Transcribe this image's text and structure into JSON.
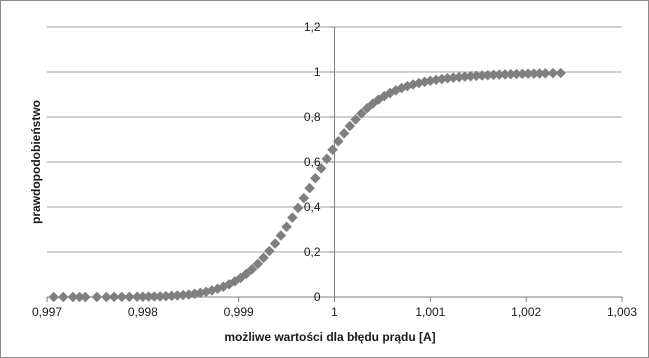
{
  "chart_data": {
    "type": "scatter",
    "xlabel": "możliwe wartości  dla błędu prądu [A]",
    "ylabel": "prawdopodobieństwo",
    "xlim": [
      0.997,
      1.003
    ],
    "ylim": [
      0,
      1.2
    ],
    "x_ticks": [
      "0,997",
      "0,998",
      "0,999",
      "1",
      "1,001",
      "1,002",
      "1,003"
    ],
    "y_ticks": [
      "0",
      "0,2",
      "0,4",
      "0,6",
      "0,8",
      "1",
      "1,2"
    ],
    "grid": true,
    "legend": "none",
    "marker": "diamond",
    "color": "#7f7f7f",
    "series": [
      {
        "x": [
          0.99707,
          0.99717,
          0.99727,
          0.99734,
          0.9974,
          0.99752,
          0.99762,
          0.9977,
          0.99778,
          0.99786,
          0.99794,
          0.998,
          0.99806,
          0.99812,
          0.99818,
          0.99824,
          0.9983,
          0.99836,
          0.99842,
          0.99848,
          0.99854,
          0.9986,
          0.99866,
          0.99872,
          0.99878,
          0.99884,
          0.9989,
          0.99896,
          0.99902,
          0.99908,
          0.99914,
          0.9992,
          0.99926,
          0.99932,
          0.99938,
          0.99944,
          0.9995,
          0.99956,
          0.99962,
          0.99968,
          0.99974,
          0.9998,
          0.99986,
          0.99992,
          0.99998,
          1.00004,
          1.0001,
          1.00016,
          1.00022,
          1.00028,
          1.00034,
          1.0004,
          1.00046,
          1.00052,
          1.00058,
          1.00064,
          1.0007,
          1.00076,
          1.00082,
          1.00088,
          1.00094,
          1.001,
          1.00106,
          1.00112,
          1.00118,
          1.00124,
          1.0013,
          1.00136,
          1.00142,
          1.00148,
          1.00154,
          1.0016,
          1.00166,
          1.00172,
          1.00178,
          1.00184,
          1.0019,
          1.00196,
          1.00202,
          1.00208,
          1.00214,
          1.0022,
          1.00228,
          1.00236
        ],
        "y": [
          0.0,
          0.0,
          0.0,
          0.0,
          0.0,
          0.0001,
          0.0002,
          0.0003,
          0.0004,
          0.0006,
          0.0009,
          0.0012,
          0.0016,
          0.0022,
          0.0029,
          0.0039,
          0.0051,
          0.0066,
          0.0086,
          0.0111,
          0.0143,
          0.0182,
          0.0231,
          0.0292,
          0.0366,
          0.0456,
          0.0565,
          0.0695,
          0.0848,
          0.1028,
          0.1236,
          0.1474,
          0.1743,
          0.2043,
          0.2374,
          0.2734,
          0.3121,
          0.353,
          0.3957,
          0.4396,
          0.484,
          0.5283,
          0.5718,
          0.614,
          0.6543,
          0.6922,
          0.7274,
          0.7598,
          0.7891,
          0.8154,
          0.8388,
          0.8594,
          0.8775,
          0.8932,
          0.9068,
          0.9185,
          0.9286,
          0.9372,
          0.9446,
          0.9509,
          0.9564,
          0.9611,
          0.9652,
          0.9688,
          0.972,
          0.9748,
          0.9772,
          0.9794,
          0.9813,
          0.983,
          0.9845,
          0.9859,
          0.9871,
          0.9882,
          0.9892,
          0.9901,
          0.9909,
          0.9917,
          0.9924,
          0.993,
          0.9936,
          0.9941,
          0.9948,
          0.9954
        ]
      }
    ]
  }
}
